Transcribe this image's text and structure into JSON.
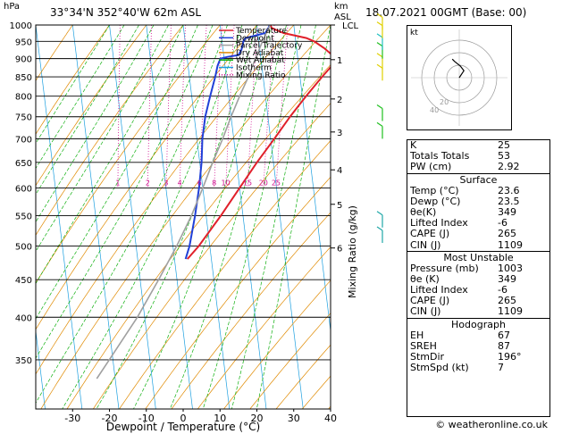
{
  "header": {
    "location": "33°34'N  352°40'W  62m  ASL",
    "datetime": "18.07.2021  00GMT  (Base: 00)",
    "p_unit": "hPa",
    "km_unit_1": "km",
    "km_unit_2": "ASL"
  },
  "chart_data": {
    "type": "line",
    "xlabel": "Dewpoint / Temperature (°C)",
    "ylabel_right": "Mixing Ratio (g/kg)",
    "xlim": [
      -40,
      40
    ],
    "ylim": [
      1000,
      300
    ],
    "x_ticks": [
      -30,
      -20,
      -10,
      0,
      10,
      20,
      30,
      40
    ],
    "y_ticks": [
      350,
      400,
      450,
      500,
      550,
      600,
      650,
      700,
      750,
      800,
      850,
      900,
      950,
      1000
    ],
    "km_ticks": [
      {
        "label": "6",
        "p": 497
      },
      {
        "label": "5",
        "p": 570
      },
      {
        "label": "4",
        "p": 635
      },
      {
        "label": "3",
        "p": 715
      },
      {
        "label": "2",
        "p": 793
      },
      {
        "label": "1",
        "p": 897
      },
      {
        "label": "LCL",
        "p": 1000
      }
    ],
    "mixing_ratio_labels": [
      "1",
      "2",
      "3",
      "4",
      "6",
      "8",
      "10",
      "15",
      "20",
      "25"
    ],
    "mixing_ratios": [
      1,
      2,
      3,
      4,
      6,
      8,
      10,
      15,
      20,
      25
    ],
    "legend": [
      {
        "name": "Temperature",
        "color": "#e0202a",
        "style": "solid"
      },
      {
        "name": "Dewpoint",
        "color": "#2040d8",
        "style": "solid"
      },
      {
        "name": "Parcel Trajectory",
        "color": "#a0a0a0",
        "style": "solid"
      },
      {
        "name": "Dry Adiabat",
        "color": "#e08a00",
        "style": "solid"
      },
      {
        "name": "Wet Adiabat",
        "color": "#10b010",
        "style": "solid"
      },
      {
        "name": "Isotherm",
        "color": "#1ea0e0",
        "style": "solid"
      },
      {
        "name": "Mixing Ratio",
        "color": "#d01090",
        "style": "dotted"
      }
    ],
    "series": [
      {
        "name": "Temperature",
        "color": "#e0202a",
        "points": [
          [
            1000,
            23.6
          ],
          [
            990,
            24
          ],
          [
            975,
            27
          ],
          [
            960,
            33
          ],
          [
            950,
            35
          ],
          [
            930,
            37.5
          ],
          [
            910,
            39.5
          ],
          [
            900,
            40
          ],
          [
            880,
            39
          ],
          [
            850,
            36
          ],
          [
            800,
            31
          ],
          [
            750,
            26
          ],
          [
            700,
            21
          ],
          [
            650,
            15.5
          ],
          [
            600,
            10
          ],
          [
            550,
            4
          ],
          [
            500,
            -3
          ],
          [
            480,
            -6.5
          ]
        ]
      },
      {
        "name": "Dewpoint",
        "color": "#2040d8",
        "points": [
          [
            1000,
            23.5
          ],
          [
            990,
            23
          ],
          [
            975,
            22
          ],
          [
            960,
            16.5
          ],
          [
            950,
            15.8
          ],
          [
            940,
            15.5
          ],
          [
            925,
            15
          ],
          [
            910,
            14
          ],
          [
            905,
            11
          ],
          [
            900,
            9
          ],
          [
            880,
            8
          ],
          [
            850,
            7
          ],
          [
            800,
            5
          ],
          [
            750,
            3
          ],
          [
            700,
            1.5
          ],
          [
            650,
            0.5
          ],
          [
            600,
            -1
          ],
          [
            550,
            -3
          ],
          [
            500,
            -5.5
          ],
          [
            480,
            -7
          ]
        ]
      },
      {
        "name": "Parcel Trajectory",
        "color": "#a0a0a0",
        "points": [
          [
            1000,
            23.6
          ],
          [
            950,
            21
          ],
          [
            900,
            18.5
          ],
          [
            850,
            16
          ],
          [
            800,
            13
          ],
          [
            750,
            10
          ],
          [
            700,
            7
          ],
          [
            650,
            3.5
          ],
          [
            600,
            0
          ],
          [
            550,
            -4
          ],
          [
            500,
            -9
          ],
          [
            450,
            -15
          ],
          [
            400,
            -22
          ],
          [
            350,
            -31
          ],
          [
            330,
            -35
          ]
        ]
      }
    ],
    "barbs": [
      {
        "p": 505,
        "color": "#20a8a8"
      },
      {
        "p": 530,
        "color": "#20a8a8"
      },
      {
        "p": 700,
        "color": "#20c020"
      },
      {
        "p": 740,
        "color": "#20c020"
      },
      {
        "p": 840,
        "color": "#e0d000"
      },
      {
        "p": 870,
        "color": "#e0d000"
      },
      {
        "p": 900,
        "color": "#20c020"
      },
      {
        "p": 925,
        "color": "#20c0c0"
      },
      {
        "p": 960,
        "color": "#e0d000"
      },
      {
        "p": 985,
        "color": "#e0d000"
      }
    ]
  },
  "hodograph": {
    "unit": "kt",
    "ring_labels": [
      "20",
      "40"
    ],
    "points": [
      [
        0,
        0
      ],
      [
        1,
        -1.5
      ],
      [
        2,
        -3
      ],
      [
        0.5,
        -5
      ],
      [
        -2,
        -7
      ],
      [
        -3,
        -8
      ]
    ]
  },
  "indices": {
    "k": {
      "label": "K",
      "value": "25"
    },
    "tt": {
      "label": "Totals Totals",
      "value": "53"
    },
    "pw": {
      "label": "PW (cm)",
      "value": "2.92"
    }
  },
  "surface": {
    "title": "Surface",
    "rows": [
      {
        "label": "Temp (°C)",
        "value": "23.6"
      },
      {
        "label": "Dewp (°C)",
        "value": "23.5"
      },
      {
        "label": "θe(K)",
        "value": "349"
      },
      {
        "label": "Lifted Index",
        "value": "-6"
      },
      {
        "label": "CAPE (J)",
        "value": "265"
      },
      {
        "label": "CIN (J)",
        "value": "1109"
      }
    ]
  },
  "most_unstable": {
    "title": "Most Unstable",
    "rows": [
      {
        "label": "Pressure (mb)",
        "value": "1003"
      },
      {
        "label": "θe (K)",
        "value": "349"
      },
      {
        "label": "Lifted Index",
        "value": "-6"
      },
      {
        "label": "CAPE (J)",
        "value": "265"
      },
      {
        "label": "CIN (J)",
        "value": "1109"
      }
    ]
  },
  "hodograph_stats": {
    "title": "Hodograph",
    "rows": [
      {
        "label": "EH",
        "value": "67"
      },
      {
        "label": "SREH",
        "value": "87"
      },
      {
        "label": "StmDir",
        "value": "196°"
      },
      {
        "label": "StmSpd (kt)",
        "value": "7"
      }
    ]
  },
  "footer": {
    "credit": "© weatheronline.co.uk"
  }
}
